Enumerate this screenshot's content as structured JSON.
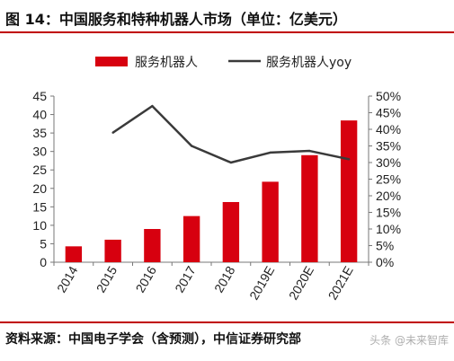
{
  "title": "图 14：中国服务和特种机器人市场（单位：亿美元）",
  "source": "资料来源：中国电子学会（含预测），中信证券研究部",
  "watermark": "头条 @未来智库",
  "colors": {
    "bar": "#d7000f",
    "line": "#3a3a3a",
    "rule": "#c00000",
    "axis": "#777777"
  },
  "chart_data": {
    "type": "bar",
    "categories": [
      "2014",
      "2015",
      "2016",
      "2017",
      "2018",
      "2019E",
      "2020E",
      "2021E"
    ],
    "series": [
      {
        "name": "服务机器人",
        "type": "bar",
        "axis": "left",
        "values": [
          4.3,
          6.1,
          9.0,
          12.5,
          16.3,
          21.8,
          29.0,
          38.4
        ]
      },
      {
        "name": "服务机器人yoy",
        "type": "line",
        "axis": "right",
        "values": [
          null,
          0.39,
          0.47,
          0.35,
          0.3,
          0.33,
          0.335,
          0.31
        ]
      }
    ],
    "y_left": {
      "min": 0,
      "max": 45,
      "ticks": [
        "0",
        "5",
        "10",
        "15",
        "20",
        "25",
        "30",
        "35",
        "40",
        "45"
      ]
    },
    "y_right": {
      "min": 0,
      "max": 0.5,
      "ticks": [
        "0%",
        "5%",
        "10%",
        "15%",
        "20%",
        "25%",
        "30%",
        "35%",
        "40%",
        "45%",
        "50%"
      ]
    },
    "legend": "top",
    "grid": false
  }
}
